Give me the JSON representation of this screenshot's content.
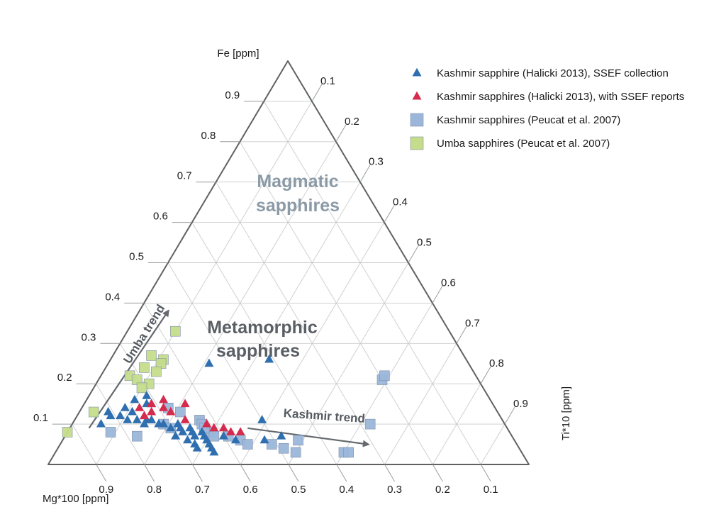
{
  "chart_data": {
    "type": "ternary-scatter",
    "axes": {
      "top": {
        "label": "Fe [ppm]",
        "ticks": [
          "0.9",
          "0.8",
          "0.7",
          "0.6",
          "0.5",
          "0.4",
          "0.3",
          "0.2",
          "0.1"
        ]
      },
      "right": {
        "label": "Ti*10 [ppm]",
        "ticks": [
          "0.1",
          "0.2",
          "0.3",
          "0.4",
          "0.5",
          "0.6",
          "0.7",
          "0.8",
          "0.9"
        ]
      },
      "left": {
        "label": "Mg*100 [ppm]",
        "ticks": [
          "0.9",
          "0.8",
          "0.7",
          "0.6",
          "0.5",
          "0.4",
          "0.3",
          "0.2",
          "0.1"
        ]
      }
    },
    "regions": [
      {
        "name": "Magmatic sapphires",
        "line1": "Magmatic",
        "line2": "sapphires",
        "color": "#d6eaf5",
        "vertices_fe_ti": [
          [
            1,
            0
          ],
          [
            0.63,
            0.37
          ],
          [
            0,
            1
          ]
        ]
      },
      {
        "name": "Metamorphic sapphires",
        "line1": "Metamorphic",
        "line2": "sapphires",
        "color": "#ffffff"
      }
    ],
    "trends": [
      {
        "label": "Umba trend",
        "from": {
          "fe": 0.09,
          "ti": 0.04
        },
        "to": {
          "fe": 0.38,
          "ti": 0.06
        }
      },
      {
        "label": "Kashmir trend",
        "from": {
          "fe": 0.09,
          "ti": 0.37
        },
        "to": {
          "fe": 0.05,
          "ti": 0.64
        }
      }
    ],
    "legend": {
      "position": "top-right",
      "entries": [
        {
          "label": "Kashmir sapphire (Halicki 2013), SSEF collection",
          "marker": "triangle",
          "color": "#2f6fb0"
        },
        {
          "label": "Kashmir sapphires (Halicki 2013), with SSEF reports",
          "marker": "triangle",
          "color": "#d62b4d"
        },
        {
          "label": "Kashmir sapphires (Peucat et al. 2007)",
          "marker": "square",
          "color": "#9bb6da"
        },
        {
          "label": "Umba sapphires (Peucat et al. 2007)",
          "marker": "square",
          "color": "#c5dc8a"
        }
      ]
    },
    "series": [
      {
        "name": "Kashmir sapphire (Halicki 2013), SSEF collection",
        "marker": "triangle",
        "color": "#2f6fb0",
        "points": [
          {
            "fe": 0.26,
            "ti": 0.33
          },
          {
            "fe": 0.25,
            "ti": 0.21
          },
          {
            "fe": 0.17,
            "ti": 0.12
          },
          {
            "fe": 0.16,
            "ti": 0.1
          },
          {
            "fe": 0.15,
            "ti": 0.13
          },
          {
            "fe": 0.14,
            "ti": 0.09
          },
          {
            "fe": 0.13,
            "ti": 0.11
          },
          {
            "fe": 0.13,
            "ti": 0.06
          },
          {
            "fe": 0.12,
            "ti": 0.09
          },
          {
            "fe": 0.12,
            "ti": 0.14
          },
          {
            "fe": 0.11,
            "ti": 0.16
          },
          {
            "fe": 0.12,
            "ti": 0.07
          },
          {
            "fe": 0.11,
            "ti": 0.11
          },
          {
            "fe": 0.11,
            "ti": 0.13
          },
          {
            "fe": 0.11,
            "ti": 0.15
          },
          {
            "fe": 0.1,
            "ti": 0.06
          },
          {
            "fe": 0.1,
            "ti": 0.18
          },
          {
            "fe": 0.1,
            "ti": 0.19
          },
          {
            "fe": 0.1,
            "ti": 0.22
          },
          {
            "fe": 0.09,
            "ti": 0.21
          },
          {
            "fe": 0.09,
            "ti": 0.23
          },
          {
            "fe": 0.09,
            "ti": 0.25
          },
          {
            "fe": 0.08,
            "ti": 0.24
          },
          {
            "fe": 0.08,
            "ti": 0.26
          },
          {
            "fe": 0.08,
            "ti": 0.28
          },
          {
            "fe": 0.07,
            "ti": 0.23
          },
          {
            "fe": 0.07,
            "ti": 0.27
          },
          {
            "fe": 0.07,
            "ti": 0.29
          },
          {
            "fe": 0.06,
            "ti": 0.26
          },
          {
            "fe": 0.06,
            "ti": 0.3
          },
          {
            "fe": 0.05,
            "ti": 0.31
          },
          {
            "fe": 0.05,
            "ti": 0.28
          },
          {
            "fe": 0.04,
            "ti": 0.32
          },
          {
            "fe": 0.04,
            "ti": 0.29
          },
          {
            "fe": 0.03,
            "ti": 0.33
          },
          {
            "fe": 0.07,
            "ti": 0.33
          },
          {
            "fe": 0.06,
            "ti": 0.36
          },
          {
            "fe": 0.11,
            "ti": 0.39
          },
          {
            "fe": 0.06,
            "ti": 0.42
          },
          {
            "fe": 0.07,
            "ti": 0.45
          },
          {
            "fe": 0.15,
            "ti": 0.14
          },
          {
            "fe": 0.1,
            "ti": 0.15
          }
        ]
      },
      {
        "name": "Kashmir sapphires (Halicki 2013), with SSEF reports",
        "marker": "triangle",
        "color": "#d62b4d",
        "points": [
          {
            "fe": 0.16,
            "ti": 0.16
          },
          {
            "fe": 0.15,
            "ti": 0.14
          },
          {
            "fe": 0.14,
            "ti": 0.12
          },
          {
            "fe": 0.14,
            "ti": 0.17
          },
          {
            "fe": 0.13,
            "ti": 0.15
          },
          {
            "fe": 0.13,
            "ti": 0.19
          },
          {
            "fe": 0.12,
            "ti": 0.14
          },
          {
            "fe": 0.15,
            "ti": 0.21
          },
          {
            "fe": 0.11,
            "ti": 0.23
          },
          {
            "fe": 0.1,
            "ti": 0.28
          },
          {
            "fe": 0.09,
            "ti": 0.3
          },
          {
            "fe": 0.09,
            "ti": 0.32
          },
          {
            "fe": 0.08,
            "ti": 0.34
          },
          {
            "fe": 0.08,
            "ti": 0.36
          }
        ]
      },
      {
        "name": "Kashmir sapphires (Peucat et al. 2007)",
        "marker": "square",
        "color": "#9bb6da",
        "points": [
          {
            "fe": 0.14,
            "ti": 0.18
          },
          {
            "fe": 0.13,
            "ti": 0.21
          },
          {
            "fe": 0.1,
            "ti": 0.19
          },
          {
            "fe": 0.09,
            "ti": 0.21
          },
          {
            "fe": 0.08,
            "ti": 0.09
          },
          {
            "fe": 0.07,
            "ti": 0.15
          },
          {
            "fe": 0.11,
            "ti": 0.26
          },
          {
            "fe": 0.1,
            "ti": 0.27
          },
          {
            "fe": 0.08,
            "ti": 0.3
          },
          {
            "fe": 0.07,
            "ti": 0.31
          },
          {
            "fe": 0.07,
            "ti": 0.34
          },
          {
            "fe": 0.06,
            "ti": 0.37
          },
          {
            "fe": 0.05,
            "ti": 0.39
          },
          {
            "fe": 0.05,
            "ti": 0.44
          },
          {
            "fe": 0.04,
            "ti": 0.47
          },
          {
            "fe": 0.06,
            "ti": 0.49
          },
          {
            "fe": 0.03,
            "ti": 0.5
          },
          {
            "fe": 0.03,
            "ti": 0.6
          },
          {
            "fe": 0.03,
            "ti": 0.61
          },
          {
            "fe": 0.21,
            "ti": 0.59
          },
          {
            "fe": 0.22,
            "ti": 0.59
          },
          {
            "fe": 0.1,
            "ti": 0.62
          },
          {
            "fe": 0.09,
            "ti": 0.28
          }
        ]
      },
      {
        "name": "Umba sapphires (Peucat et al. 2007)",
        "marker": "square",
        "color": "#c5dc8a",
        "points": [
          {
            "fe": 0.33,
            "ti": 0.1
          },
          {
            "fe": 0.27,
            "ti": 0.08
          },
          {
            "fe": 0.26,
            "ti": 0.11
          },
          {
            "fe": 0.25,
            "ti": 0.11
          },
          {
            "fe": 0.24,
            "ti": 0.08
          },
          {
            "fe": 0.23,
            "ti": 0.11
          },
          {
            "fe": 0.22,
            "ti": 0.06
          },
          {
            "fe": 0.21,
            "ti": 0.08
          },
          {
            "fe": 0.2,
            "ti": 0.11
          },
          {
            "fe": 0.19,
            "ti": 0.1
          },
          {
            "fe": 0.13,
            "ti": 0.03
          },
          {
            "fe": 0.08,
            "ti": 0.0
          }
        ]
      }
    ]
  }
}
